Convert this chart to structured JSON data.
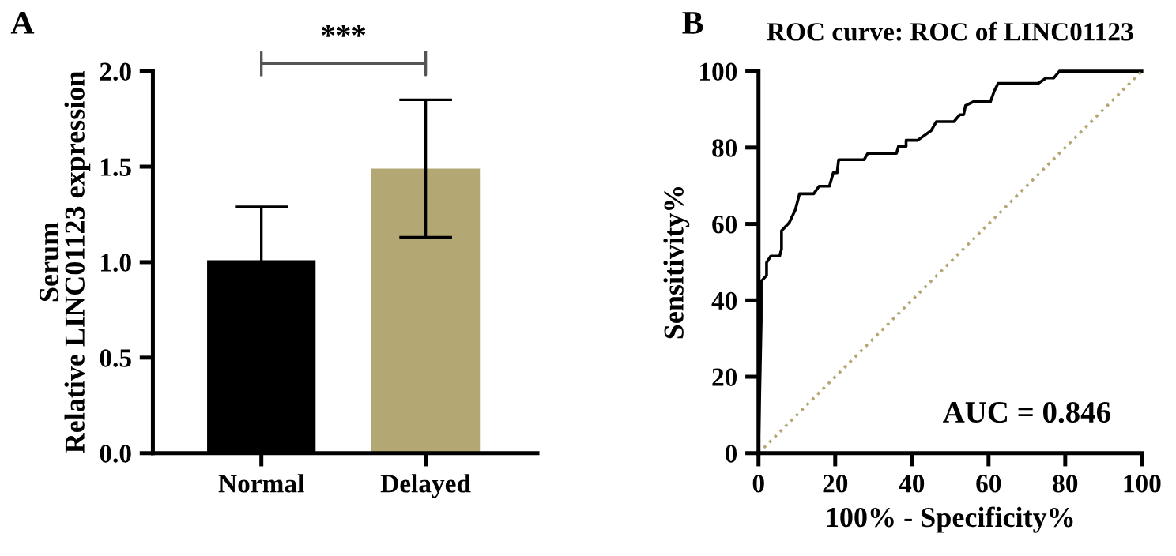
{
  "chart_data": [
    {
      "type": "bar",
      "ylabel": "Serum\nRelative LINC01123 expression",
      "categories": [
        "Normal",
        "Delayed"
      ],
      "values": [
        1.01,
        1.49
      ],
      "colors": [
        "#000000",
        "#b3a774"
      ],
      "errors": [
        0.28,
        0.36
      ],
      "ylim": [
        0,
        2.0
      ],
      "yticks": [
        {
          "value": 0,
          "label": "0.0"
        },
        {
          "value": 0.5,
          "label": "0.5"
        },
        {
          "value": 1.0,
          "label": "1.0"
        },
        {
          "value": 1.5,
          "label": "1.5"
        },
        {
          "value": 2.0,
          "label": "2.0"
        }
      ],
      "grid": false,
      "annotations": [
        "A",
        "***"
      ]
    },
    {
      "type": "step",
      "title": "ROC curve: ROC of LINC01123",
      "xlabel": "100% - Specificity%",
      "ylabel": "Sensitivity%",
      "xlim": [
        0,
        100
      ],
      "ylim": [
        0,
        100
      ],
      "xticks": [
        0,
        20,
        40,
        60,
        80,
        100
      ],
      "yticks": [
        0,
        20,
        40,
        60,
        80,
        100
      ],
      "grid": false,
      "annotations": [
        "B",
        "AUC = 0.846"
      ],
      "series": [
        {
          "type": "line",
          "color": "#000000",
          "line_style": "solid",
          "x": [
            0,
            0.7,
            0.7,
            2.1,
            2.1,
            3.2,
            5.5,
            6,
            6,
            8,
            9.6,
            10.7,
            14.4,
            15.8,
            18.5,
            19.5,
            20.5,
            20.9,
            27.5,
            28.5,
            36,
            36.5,
            38.5,
            38.5,
            41.5,
            45,
            46.4,
            51,
            52.5,
            53.5,
            54,
            56,
            60.5,
            61.5,
            62.5,
            73,
            75,
            77,
            78.5,
            100
          ],
          "values": [
            0,
            35,
            45,
            46.5,
            49.9,
            51.6,
            51.6,
            53.4,
            58.2,
            60.3,
            63.7,
            67.9,
            67.9,
            69.9,
            69.9,
            73.4,
            73.4,
            76.8,
            76.8,
            78.5,
            78.5,
            80.3,
            80.3,
            81.9,
            81.9,
            84.4,
            86.8,
            86.8,
            88.6,
            88.6,
            91,
            92,
            92,
            94.8,
            96.8,
            96.8,
            98.2,
            98.2,
            100,
            100
          ]
        },
        {
          "type": "line",
          "color": "#b3a774",
          "line_style": "dotted",
          "x": [
            0,
            100
          ],
          "values": [
            0,
            100
          ]
        }
      ]
    }
  ]
}
